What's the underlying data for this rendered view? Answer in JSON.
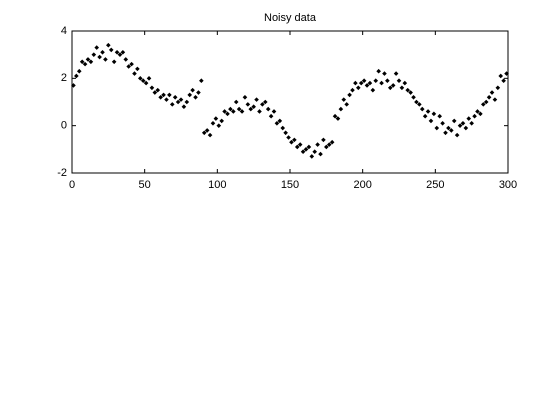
{
  "chart_data": {
    "type": "scatter",
    "title": "Noisy data",
    "color": "#000000",
    "x": [
      1,
      3,
      5,
      7,
      9,
      11,
      13,
      15,
      17,
      19,
      21,
      23,
      25,
      27,
      29,
      31,
      33,
      35,
      37,
      39,
      41,
      43,
      45,
      47,
      49,
      51,
      53,
      55,
      57,
      59,
      61,
      63,
      65,
      67,
      69,
      71,
      73,
      75,
      77,
      79,
      81,
      83,
      85,
      87,
      89,
      91,
      93,
      95,
      97,
      99,
      101,
      103,
      105,
      107,
      109,
      111,
      113,
      115,
      117,
      119,
      121,
      123,
      125,
      127,
      129,
      131,
      133,
      135,
      137,
      139,
      141,
      143,
      145,
      147,
      149,
      151,
      153,
      155,
      157,
      159,
      161,
      163,
      165,
      167,
      169,
      171,
      173,
      175,
      177,
      179,
      181,
      183,
      185,
      187,
      189,
      191,
      193,
      195,
      197,
      199,
      201,
      203,
      205,
      207,
      209,
      211,
      213,
      215,
      217,
      219,
      221,
      223,
      225,
      227,
      229,
      231,
      233,
      235,
      237,
      239,
      241,
      243,
      245,
      247,
      249,
      251,
      253,
      255,
      257,
      259,
      261,
      263,
      265,
      267,
      269,
      271,
      273,
      275,
      277,
      279,
      281,
      283,
      285,
      287,
      289,
      291,
      293,
      295,
      297,
      299
    ],
    "values": [
      1.7,
      2.1,
      2.3,
      2.7,
      2.6,
      2.8,
      2.7,
      3.0,
      3.3,
      2.9,
      3.1,
      2.8,
      3.4,
      3.2,
      2.7,
      3.1,
      3.0,
      3.1,
      2.8,
      2.5,
      2.6,
      2.2,
      2.4,
      2.0,
      1.9,
      1.8,
      2.0,
      1.6,
      1.4,
      1.5,
      1.2,
      1.3,
      1.1,
      1.3,
      0.9,
      1.2,
      1.0,
      1.1,
      0.8,
      1.0,
      1.3,
      1.5,
      1.2,
      1.4,
      1.9,
      -0.3,
      -0.2,
      -0.4,
      0.1,
      0.3,
      0.0,
      0.2,
      0.6,
      0.5,
      0.7,
      0.6,
      1.0,
      0.7,
      0.6,
      1.2,
      0.9,
      0.7,
      0.8,
      1.1,
      0.6,
      0.9,
      1.0,
      0.7,
      0.4,
      0.6,
      0.1,
      0.2,
      -0.1,
      -0.3,
      -0.5,
      -0.7,
      -0.6,
      -0.9,
      -0.8,
      -1.1,
      -1.0,
      -0.9,
      -1.3,
      -1.1,
      -0.8,
      -1.2,
      -0.6,
      -0.9,
      -0.8,
      -0.7,
      0.4,
      0.3,
      0.7,
      1.1,
      0.9,
      1.3,
      1.5,
      1.8,
      1.6,
      1.8,
      1.9,
      1.7,
      1.8,
      1.5,
      1.9,
      2.3,
      1.8,
      2.2,
      1.9,
      1.6,
      1.7,
      2.2,
      1.9,
      1.6,
      1.8,
      1.5,
      1.4,
      1.2,
      1.0,
      0.9,
      0.7,
      0.4,
      0.6,
      0.2,
      0.5,
      -0.1,
      0.4,
      0.1,
      -0.3,
      -0.1,
      -0.2,
      0.2,
      -0.4,
      0.0,
      0.1,
      -0.1,
      0.3,
      0.1,
      0.4,
      0.6,
      0.5,
      0.9,
      1.0,
      1.2,
      1.4,
      1.1,
      1.6,
      2.1,
      1.9,
      2.2
    ],
    "xlim": [
      0,
      300
    ],
    "xticks": [
      0,
      50,
      100,
      150,
      200,
      250,
      300
    ],
    "ylim": [
      -2,
      4
    ],
    "yticks": [
      -2,
      0,
      2,
      4
    ]
  }
}
